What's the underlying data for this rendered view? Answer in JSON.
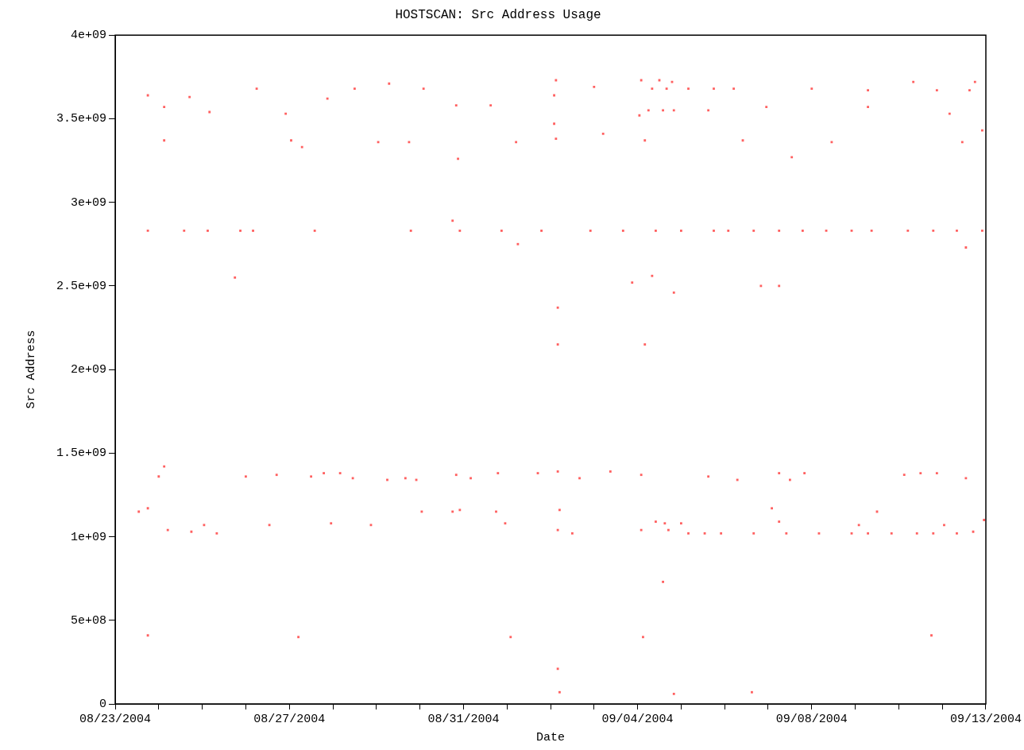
{
  "chart_data": {
    "type": "scatter",
    "title": "HOSTSCAN: Src Address Usage",
    "xlabel": "Date",
    "ylabel": "Src Address",
    "marker": "square",
    "legend": false,
    "grid": false,
    "xlim": [
      "2004-08-23",
      "2004-09-12"
    ],
    "xticks": [
      {
        "value": "2004-08-23",
        "label": "08/23/2004"
      },
      {
        "value": "2004-08-24",
        "label": null
      },
      {
        "value": "2004-08-25",
        "label": null
      },
      {
        "value": "2004-08-26",
        "label": null
      },
      {
        "value": "2004-08-27",
        "label": "08/27/2004"
      },
      {
        "value": "2004-08-28",
        "label": null
      },
      {
        "value": "2004-08-29",
        "label": null
      },
      {
        "value": "2004-08-30",
        "label": null
      },
      {
        "value": "2004-08-31",
        "label": "08/31/2004"
      },
      {
        "value": "2004-09-01",
        "label": null
      },
      {
        "value": "2004-09-02",
        "label": null
      },
      {
        "value": "2004-09-03",
        "label": null
      },
      {
        "value": "2004-09-04",
        "label": "09/04/2004"
      },
      {
        "value": "2004-09-05",
        "label": null
      },
      {
        "value": "2004-09-06",
        "label": null
      },
      {
        "value": "2004-09-07",
        "label": null
      },
      {
        "value": "2004-09-08",
        "label": "09/08/2004"
      },
      {
        "value": "2004-09-09",
        "label": null
      },
      {
        "value": "2004-09-10",
        "label": null
      },
      {
        "value": "2004-09-11",
        "label": null
      },
      {
        "value": "2004-09-12",
        "label": "09/13/2004"
      }
    ],
    "ylim": [
      0,
      4000000000
    ],
    "yticks": [
      {
        "value": 0,
        "label": "0"
      },
      {
        "value": 500000000,
        "label": "5e+08"
      },
      {
        "value": 1000000000,
        "label": "1e+09"
      },
      {
        "value": 1500000000,
        "label": "1.5e+09"
      },
      {
        "value": 2000000000,
        "label": "2e+09"
      },
      {
        "value": 2500000000,
        "label": "2.5e+09"
      },
      {
        "value": 3000000000,
        "label": "3e+09"
      },
      {
        "value": 3500000000,
        "label": "3.5e+09"
      },
      {
        "value": 4000000000,
        "label": "4e+09"
      }
    ],
    "series": [
      {
        "color": "#ff6060",
        "x": [
          "2004-08-23T18:00",
          "2004-08-24T03:00",
          "2004-08-24T03:00",
          "2004-08-24T17:00",
          "2004-08-25T04:00",
          "2004-08-26T06:00",
          "2004-08-26T22:00",
          "2004-08-27T01:00",
          "2004-08-27T07:00",
          "2004-08-27T21:00",
          "2004-08-28T12:00",
          "2004-08-29T01:00",
          "2004-08-29T07:00",
          "2004-08-29T18:00",
          "2004-08-30T02:00",
          "2004-08-30T20:00",
          "2004-08-30T21:00",
          "2004-08-31T15:00",
          "2004-09-01T05:00",
          "2004-09-02T02:00",
          "2004-09-02T03:00",
          "2004-09-02T02:00",
          "2004-09-02T03:00",
          "2004-09-03T00:00",
          "2004-09-03T05:00",
          "2004-09-04T01:00",
          "2004-09-04T02:00",
          "2004-09-04T04:00",
          "2004-09-04T06:00",
          "2004-09-04T08:00",
          "2004-09-04T12:00",
          "2004-09-04T14:00",
          "2004-09-04T16:00",
          "2004-09-04T19:00",
          "2004-09-04T20:00",
          "2004-09-05T04:00",
          "2004-09-05T15:00",
          "2004-09-05T18:00",
          "2004-09-06T05:00",
          "2004-09-06T10:00",
          "2004-09-06T23:00",
          "2004-09-07T13:00",
          "2004-09-08T00:00",
          "2004-09-08T11:00",
          "2004-09-09T07:00",
          "2004-09-09T07:00",
          "2004-09-10T08:00",
          "2004-09-10T21:00",
          "2004-09-11T04:00",
          "2004-09-11T11:00",
          "2004-09-11T15:00",
          "2004-09-11T18:00",
          "2004-09-11T22:00",
          "2004-08-23T18:00",
          "2004-08-24T14:00",
          "2004-08-25T03:00",
          "2004-08-25T21:00",
          "2004-08-26T04:00",
          "2004-08-27T14:00",
          "2004-08-29T19:00",
          "2004-08-30T22:00",
          "2004-08-31T21:00",
          "2004-09-01T19:00",
          "2004-09-02T22:00",
          "2004-09-03T16:00",
          "2004-09-04T10:00",
          "2004-09-05T00:00",
          "2004-09-05T18:00",
          "2004-09-06T02:00",
          "2004-09-06T16:00",
          "2004-09-07T06:00",
          "2004-09-07T19:00",
          "2004-09-08T08:00",
          "2004-09-08T22:00",
          "2004-09-09T09:00",
          "2004-09-10T05:00",
          "2004-09-10T19:00",
          "2004-09-11T08:00",
          "2004-09-11T22:00",
          "2004-08-25T18:00",
          "2004-08-30T18:00",
          "2004-09-01T06:00",
          "2004-09-06T20:00",
          "2004-09-07T06:00",
          "2004-09-11T13:00",
          "2004-09-04T08:00",
          "2004-09-04T20:00",
          "2004-09-03T21:00",
          "2004-09-02T04:00",
          "2004-09-02T04:00",
          "2004-09-04T04:00",
          "2004-08-24T00:00",
          "2004-08-24T03:00",
          "2004-08-26T00:00",
          "2004-08-26T17:00",
          "2004-08-27T12:00",
          "2004-08-27T19:00",
          "2004-08-28T04:00",
          "2004-08-28T11:00",
          "2004-08-29T06:00",
          "2004-08-29T16:00",
          "2004-08-29T22:00",
          "2004-08-30T20:00",
          "2004-08-31T04:00",
          "2004-08-31T19:00",
          "2004-09-01T17:00",
          "2004-09-02T04:00",
          "2004-09-02T16:00",
          "2004-09-03T09:00",
          "2004-09-04T02:00",
          "2004-09-05T15:00",
          "2004-09-06T07:00",
          "2004-09-07T06:00",
          "2004-09-07T12:00",
          "2004-09-07T20:00",
          "2004-09-10T03:00",
          "2004-09-10T12:00",
          "2004-09-10T21:00",
          "2004-09-11T13:00",
          "2004-08-23T13:00",
          "2004-08-23T18:00",
          "2004-08-24T05:00",
          "2004-08-24T18:00",
          "2004-08-25T01:00",
          "2004-08-25T08:00",
          "2004-08-26T13:00",
          "2004-08-27T23:00",
          "2004-08-28T21:00",
          "2004-08-30T01:00",
          "2004-08-30T18:00",
          "2004-08-30T22:00",
          "2004-08-31T18:00",
          "2004-08-31T23:00",
          "2004-09-02T04:00",
          "2004-09-02T05:00",
          "2004-09-02T12:00",
          "2004-09-04T02:00",
          "2004-09-04T10:00",
          "2004-09-04T15:00",
          "2004-09-04T17:00",
          "2004-09-05T00:00",
          "2004-09-05T04:00",
          "2004-09-05T13:00",
          "2004-09-05T22:00",
          "2004-09-06T16:00",
          "2004-09-07T02:00",
          "2004-09-07T06:00",
          "2004-09-07T10:00",
          "2004-09-08T04:00",
          "2004-09-08T22:00",
          "2004-09-09T02:00",
          "2004-09-09T07:00",
          "2004-09-09T12:00",
          "2004-09-09T20:00",
          "2004-09-10T10:00",
          "2004-09-10T19:00",
          "2004-09-11T01:00",
          "2004-09-11T08:00",
          "2004-09-11T17:00",
          "2004-09-11T23:00",
          "2004-09-04T14:00",
          "2004-08-23T18:00",
          "2004-08-27T05:00",
          "2004-09-01T02:00",
          "2004-09-04T03:00",
          "2004-09-10T18:00",
          "2004-09-02T04:00",
          "2004-09-02T05:00",
          "2004-09-04T20:00",
          "2004-09-06T15:00"
        ],
        "values": [
          3640000000,
          3570000000,
          3370000000,
          3630000000,
          3540000000,
          3680000000,
          3530000000,
          3370000000,
          3330000000,
          3620000000,
          3680000000,
          3360000000,
          3710000000,
          3360000000,
          3680000000,
          3580000000,
          3260000000,
          3580000000,
          3360000000,
          3640000000,
          3730000000,
          3470000000,
          3380000000,
          3690000000,
          3410000000,
          3520000000,
          3730000000,
          3370000000,
          3550000000,
          3680000000,
          3730000000,
          3550000000,
          3680000000,
          3720000000,
          3550000000,
          3680000000,
          3550000000,
          3680000000,
          3680000000,
          3370000000,
          3570000000,
          3270000000,
          3680000000,
          3360000000,
          3670000000,
          3570000000,
          3720000000,
          3670000000,
          3530000000,
          3360000000,
          3670000000,
          3720000000,
          3430000000,
          2830000000,
          2830000000,
          2830000000,
          2830000000,
          2830000000,
          2830000000,
          2830000000,
          2830000000,
          2830000000,
          2830000000,
          2830000000,
          2830000000,
          2830000000,
          2830000000,
          2830000000,
          2830000000,
          2830000000,
          2830000000,
          2830000000,
          2830000000,
          2830000000,
          2830000000,
          2830000000,
          2830000000,
          2830000000,
          2830000000,
          2550000000,
          2890000000,
          2750000000,
          2500000000,
          2500000000,
          2730000000,
          2560000000,
          2460000000,
          2520000000,
          2370000000,
          2150000000,
          2150000000,
          1360000000,
          1420000000,
          1360000000,
          1370000000,
          1360000000,
          1380000000,
          1380000000,
          1350000000,
          1340000000,
          1350000000,
          1340000000,
          1370000000,
          1350000000,
          1380000000,
          1380000000,
          1390000000,
          1350000000,
          1390000000,
          1370000000,
          1360000000,
          1340000000,
          1380000000,
          1340000000,
          1380000000,
          1370000000,
          1380000000,
          1380000000,
          1350000000,
          1150000000,
          1170000000,
          1040000000,
          1030000000,
          1070000000,
          1020000000,
          1070000000,
          1080000000,
          1070000000,
          1150000000,
          1150000000,
          1160000000,
          1150000000,
          1080000000,
          1040000000,
          1160000000,
          1020000000,
          1040000000,
          1090000000,
          1080000000,
          1040000000,
          1080000000,
          1020000000,
          1020000000,
          1020000000,
          1020000000,
          1170000000,
          1090000000,
          1020000000,
          1020000000,
          1020000000,
          1070000000,
          1020000000,
          1150000000,
          1020000000,
          1020000000,
          1020000000,
          1070000000,
          1020000000,
          1030000000,
          1100000000,
          730000000,
          410000000,
          400000000,
          400000000,
          400000000,
          410000000,
          210000000,
          70000000,
          60000000,
          70000000
        ]
      }
    ]
  }
}
